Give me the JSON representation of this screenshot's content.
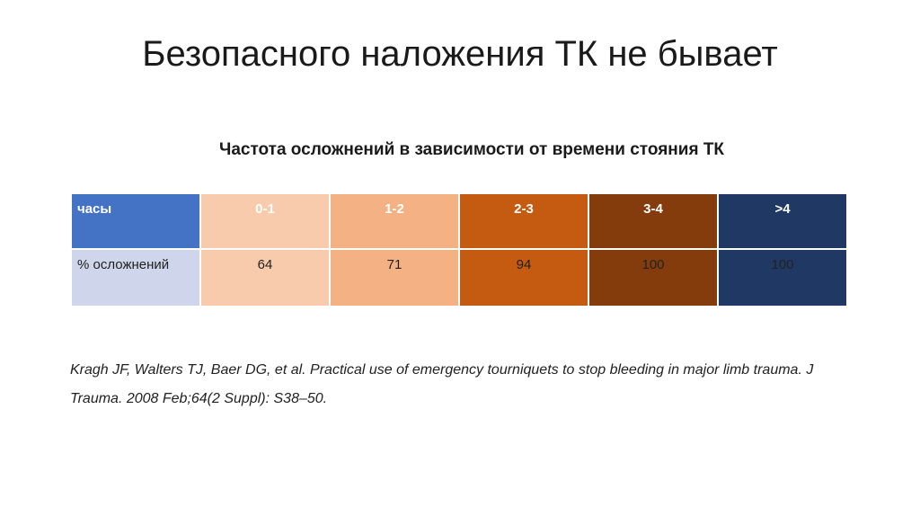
{
  "header": {
    "title": "Безопасного наложения ТК не бывает"
  },
  "subtitle": "Частота осложнений в зависимости от времени стояния ТК",
  "table": {
    "header": [
      "часы",
      "0-1",
      "1-2",
      "2-3",
      "3-4",
      ">4"
    ],
    "rows": [
      [
        "% осложнений",
        64,
        71,
        94,
        100,
        100
      ]
    ]
  },
  "citation": "Kragh JF, Walters TJ, Baer DG, et al. Practical use of emergency tourniquets to stop bleeding in major limb trauma. J Trauma. 2008 Feb;64(2 Suppl): S38–50."
}
